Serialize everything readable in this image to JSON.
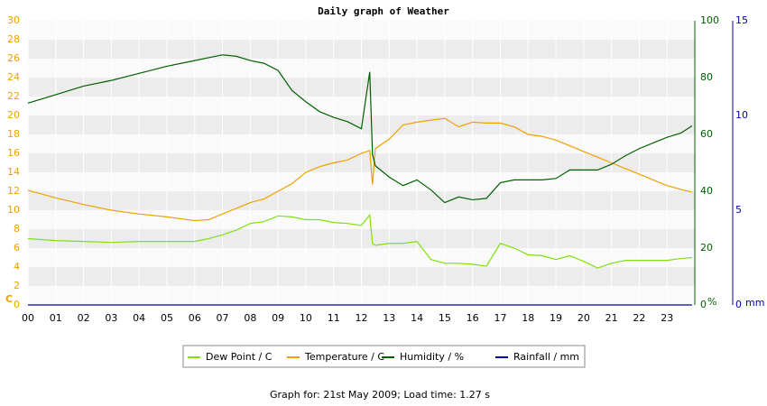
{
  "chart_data": {
    "type": "line",
    "title": "Daily graph of Weather",
    "footer": "Graph for: 21st May 2009; Load time: 1.27 s",
    "x": [
      0,
      1,
      2,
      3,
      4,
      5,
      6,
      6.5,
      7,
      7.5,
      8,
      8.5,
      9,
      9.5,
      10,
      10.5,
      11,
      11.5,
      12,
      12.3,
      12.4,
      12.5,
      13,
      13.5,
      14,
      14.5,
      15,
      15.5,
      16,
      16.5,
      17,
      17.5,
      18,
      18.5,
      19,
      19.5,
      20,
      20.5,
      21,
      21.5,
      22,
      22.5,
      23,
      23.5,
      23.9
    ],
    "xlim": [
      0,
      24
    ],
    "xticks": [
      {
        "value": 0,
        "label": "00"
      },
      {
        "value": 1,
        "label": "01"
      },
      {
        "value": 2,
        "label": "02"
      },
      {
        "value": 3,
        "label": "03"
      },
      {
        "value": 4,
        "label": "04"
      },
      {
        "value": 5,
        "label": "05"
      },
      {
        "value": 6,
        "label": "06"
      },
      {
        "value": 7,
        "label": "07"
      },
      {
        "value": 8,
        "label": "08"
      },
      {
        "value": 9,
        "label": "09"
      },
      10,
      11,
      12,
      13,
      14,
      15,
      16,
      17,
      18,
      19,
      20,
      21,
      22,
      23
    ],
    "ylim": [
      0,
      30
    ],
    "yticks": [
      0,
      2,
      4,
      6,
      8,
      10,
      12,
      14,
      16,
      18,
      20,
      22,
      24,
      26,
      28,
      30
    ],
    "ylabel": "C",
    "y2lim": [
      0,
      100
    ],
    "y2ticks": [
      0,
      20,
      40,
      60,
      80,
      100
    ],
    "y2label": "%",
    "y3lim": [
      0,
      15
    ],
    "y3ticks": [
      0,
      5,
      10,
      15
    ],
    "y3label": "mm",
    "grid": true,
    "series": [
      {
        "name": "Dew Point / C",
        "color": "#80e010",
        "axis": "y",
        "values": [
          7.0,
          6.8,
          6.7,
          6.6,
          6.7,
          6.7,
          6.7,
          7.0,
          7.4,
          7.9,
          8.6,
          8.8,
          9.4,
          9.3,
          9.0,
          9.0,
          8.7,
          8.6,
          8.4,
          9.5,
          6.5,
          6.3,
          6.5,
          6.5,
          6.7,
          4.8,
          4.4,
          4.4,
          4.3,
          4.1,
          6.5,
          6.0,
          5.3,
          5.2,
          4.8,
          5.2,
          4.6,
          3.9,
          4.4,
          4.7,
          4.7,
          4.7,
          4.7,
          4.9,
          5.0
        ]
      },
      {
        "name": "Temperature / C",
        "color": "#f0a000",
        "axis": "y",
        "values": [
          12.1,
          11.3,
          10.6,
          10.0,
          9.6,
          9.3,
          8.9,
          9.0,
          9.6,
          10.2,
          10.8,
          11.2,
          12.0,
          12.8,
          14.0,
          14.6,
          15.0,
          15.3,
          16.0,
          16.3,
          12.7,
          16.5,
          17.5,
          19.0,
          19.3,
          19.5,
          19.7,
          18.8,
          19.3,
          19.2,
          19.2,
          18.8,
          18.0,
          17.8,
          17.4,
          16.8,
          16.2,
          15.6,
          15.0,
          14.4,
          13.8,
          13.2,
          12.6,
          12.2,
          11.9
        ]
      },
      {
        "name": "Humidity / %",
        "color": "#006000",
        "axis": "y2",
        "values": [
          71,
          74,
          77,
          79,
          81.5,
          84,
          86,
          87,
          88,
          87.5,
          86,
          85,
          82.5,
          75.5,
          71.5,
          68,
          66,
          64.5,
          62,
          82,
          53,
          49,
          45,
          42,
          44,
          40.5,
          36,
          38,
          37,
          37.5,
          43,
          44,
          44,
          44,
          44.5,
          47.5,
          47.5,
          47.5,
          49.5,
          52.5,
          55,
          57,
          59,
          60.5,
          63
        ]
      },
      {
        "name": "Rainfall / mm",
        "color": "#0000b0",
        "axis": "y3",
        "values": [
          0,
          0,
          0,
          0,
          0,
          0,
          0,
          0,
          0,
          0,
          0,
          0,
          0,
          0,
          0,
          0,
          0,
          0,
          0,
          0,
          0,
          0,
          0,
          0,
          0,
          0,
          0,
          0,
          0,
          0,
          0,
          0,
          0,
          0,
          0,
          0,
          0,
          0,
          0,
          0,
          0,
          0,
          0,
          0,
          0
        ]
      }
    ]
  }
}
